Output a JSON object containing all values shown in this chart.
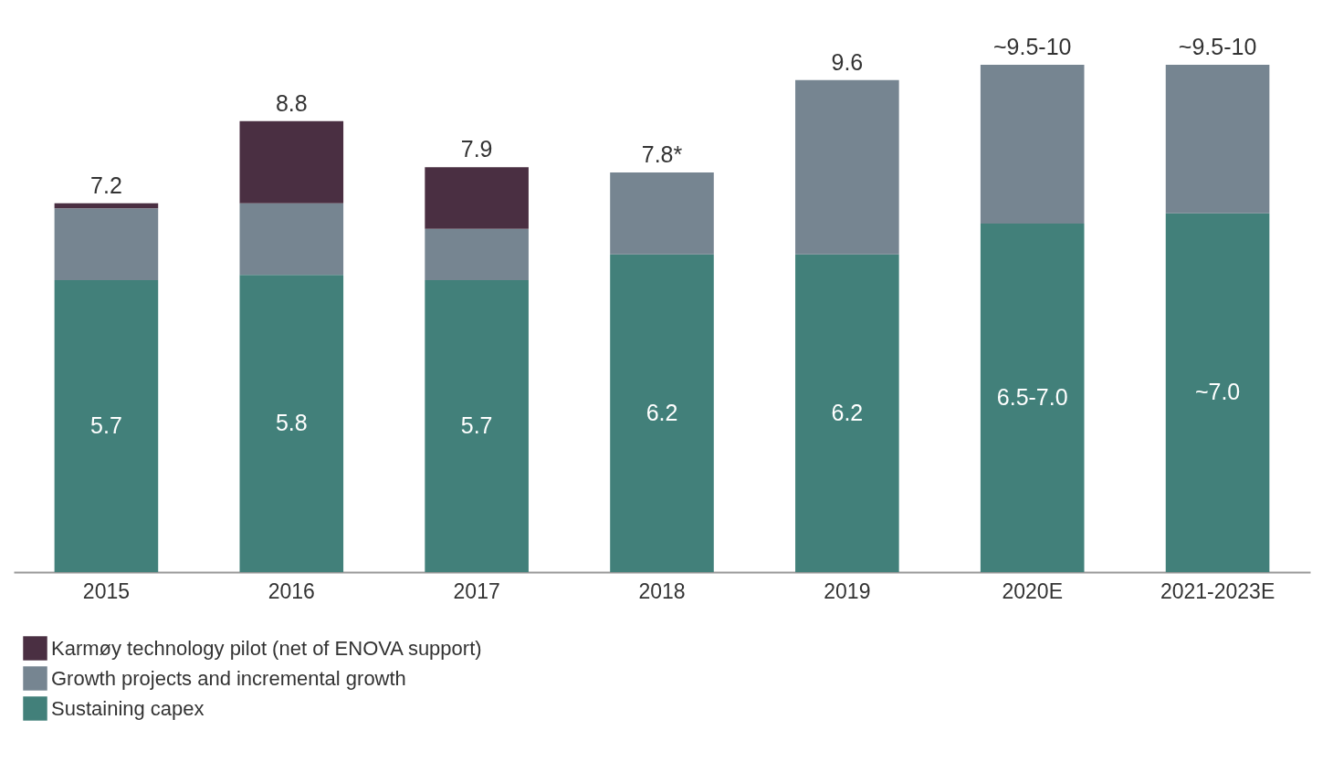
{
  "chart_data": {
    "type": "bar",
    "stacked": true,
    "categories": [
      "2015",
      "2016",
      "2017",
      "2018",
      "2019",
      "2020E",
      "2021-2023E"
    ],
    "series": [
      {
        "name": "Sustaining capex",
        "color": "#42807a",
        "values": [
          5.7,
          5.8,
          5.7,
          6.2,
          6.2,
          6.8,
          7.0
        ],
        "value_labels": [
          "5.7",
          "5.8",
          "5.7",
          "6.2",
          "6.2",
          "6.5-7.0",
          "~7.0"
        ]
      },
      {
        "name": "Growth projects and incremental growth",
        "color": "#768591",
        "values": [
          1.4,
          1.4,
          1.0,
          1.6,
          3.4,
          3.1,
          2.9
        ]
      },
      {
        "name": "Karmøy technology pilot (net of ENOVA support)",
        "color": "#4a2f42",
        "values": [
          0.1,
          1.6,
          1.2,
          null,
          null,
          null,
          null
        ]
      }
    ],
    "totals": [
      "7.2",
      "8.8",
      "7.9",
      "7.8*",
      "9.6",
      "~9.5-10",
      "~9.5-10"
    ],
    "legend": "bottom left"
  }
}
